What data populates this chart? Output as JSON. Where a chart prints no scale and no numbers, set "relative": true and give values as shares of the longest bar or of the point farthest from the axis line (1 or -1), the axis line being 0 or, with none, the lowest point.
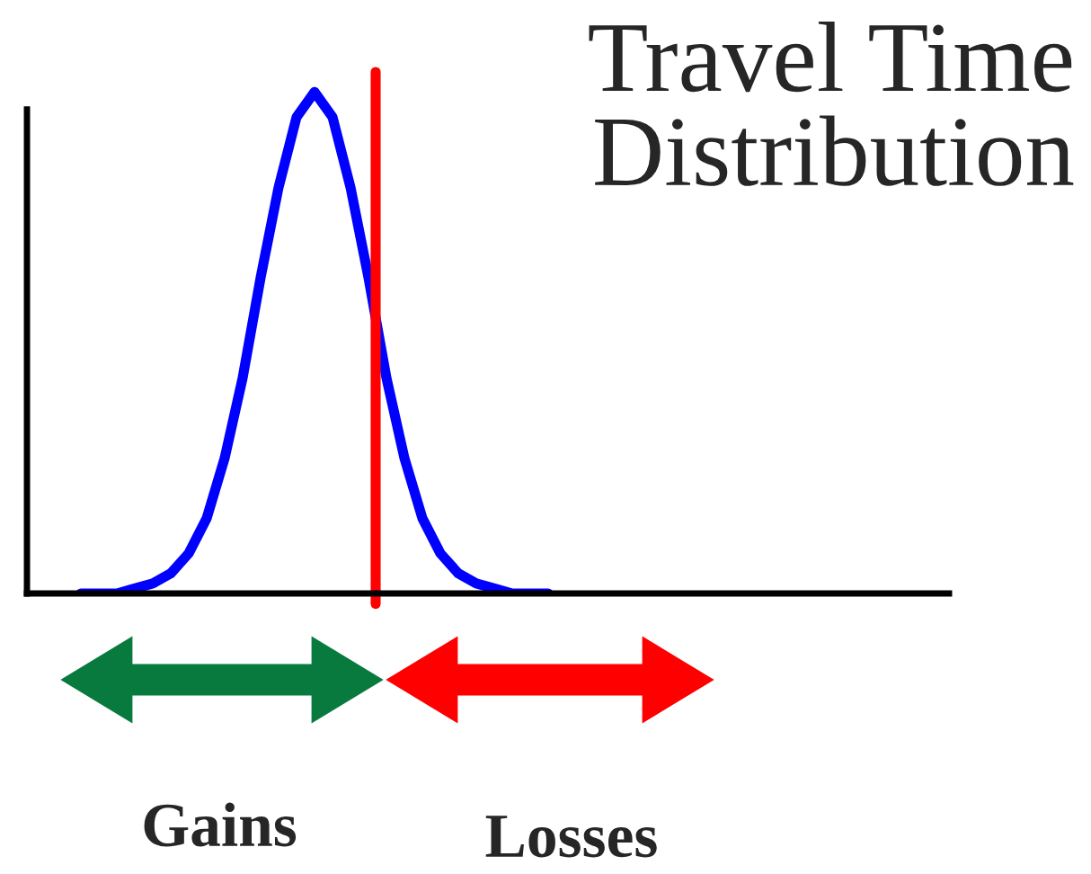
{
  "chart_data": {
    "type": "line",
    "relative": true,
    "title": "Travel Time\nDistribution",
    "categories": [
      null,
      null,
      null,
      null,
      null,
      null,
      null,
      null,
      null,
      null,
      null,
      null,
      null,
      null,
      null,
      null,
      null,
      null,
      null,
      null,
      null,
      null,
      null,
      null,
      null,
      null,
      null
    ],
    "series": [
      {
        "color": "#0000ff",
        "values": [
          0,
          0,
          0,
          0.01,
          0.02,
          0.04,
          0.08,
          0.15,
          0.27,
          0.43,
          0.63,
          0.81,
          0.95,
          1,
          0.95,
          0.81,
          0.63,
          0.43,
          0.27,
          0.15,
          0.08,
          0.04,
          0.02,
          0.01,
          0,
          0,
          0
        ]
      }
    ],
    "annotations": [
      "Gains",
      "Losses"
    ],
    "marker": "none",
    "line_style": "solid"
  }
}
